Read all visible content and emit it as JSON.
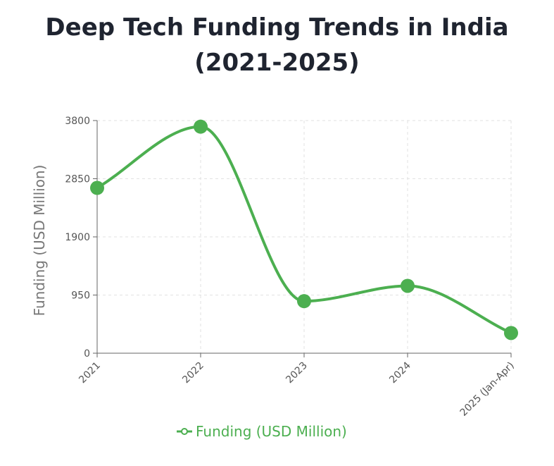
{
  "chart_data": {
    "type": "line",
    "title": "Deep Tech Funding Trends in India (2021-2025)",
    "xlabel": "",
    "ylabel": "Funding (USD Million)",
    "categories": [
      "2021",
      "2022",
      "2023",
      "2024",
      "2025 (Jan-Apr)"
    ],
    "series": [
      {
        "name": "Funding (USD Million)",
        "values": [
          2700,
          3700,
          850,
          1100,
          330
        ]
      }
    ],
    "y_ticks": [
      0,
      950,
      1900,
      2850,
      3800
    ],
    "y_tick_labels": [
      "0",
      "950",
      "1900",
      "2850",
      "3800"
    ],
    "ylim": [
      0,
      3800
    ],
    "grid": true,
    "legend_position": "bottom-center",
    "line_color": "#4caf50"
  }
}
